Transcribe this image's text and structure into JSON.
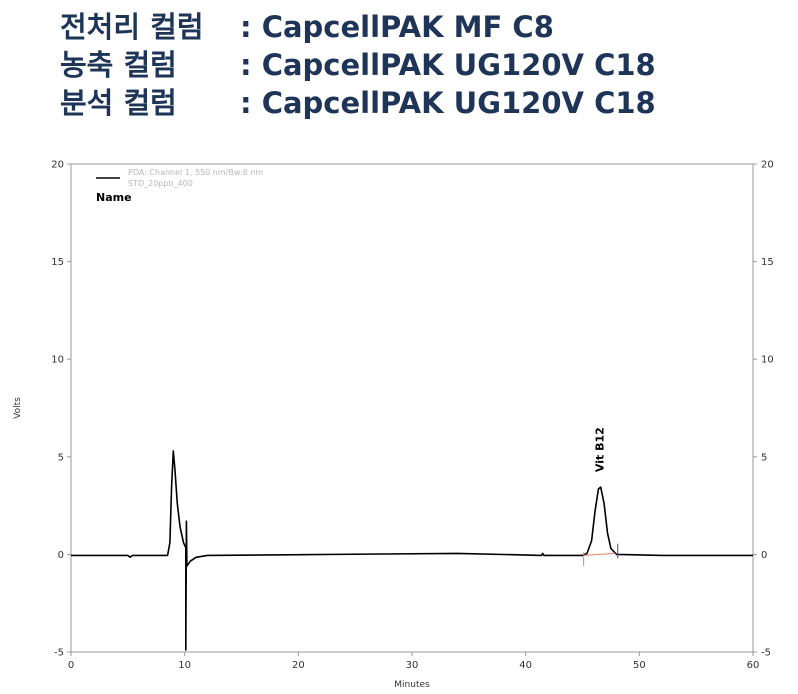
{
  "header": {
    "lines": [
      {
        "label": "전처리 컬럼",
        "value": ": CapcellPAK MF C8"
      },
      {
        "label": "농축 컬럼",
        "value": ": CapcellPAK UG120V C18"
      },
      {
        "label": "분석 컬럼",
        "value": ": CapcellPAK UG120V C18"
      }
    ]
  },
  "chart_data": {
    "type": "line",
    "xlabel": "Minutes",
    "ylabel": "Volts",
    "xlim": [
      0,
      60
    ],
    "ylim": [
      -5,
      20
    ],
    "x_ticks": [
      "0",
      "10",
      "20",
      "30",
      "40",
      "50",
      "60"
    ],
    "y_ticks": [
      "-5",
      "0",
      "5",
      "10",
      "15",
      "20"
    ],
    "right_y_ticks": [
      "-5",
      "0",
      "5",
      "10",
      "15",
      "20"
    ],
    "grid": false,
    "legend": {
      "placement": "top-left",
      "entries": [
        "PDA: Channel 1, 550 nm/Bw:8 nm",
        "STD_20ppb_400"
      ],
      "heading": "Name"
    },
    "annotations": [
      {
        "text": "Vit B12",
        "x": 46.5,
        "y": 3.5
      }
    ],
    "colors": {
      "trace": "#000000",
      "baseline": "#e8806a",
      "marker_end": "#3344cc"
    },
    "series": [
      {
        "points": [
          [
            0,
            -0.05
          ],
          [
            5.0,
            -0.05
          ],
          [
            5.2,
            -0.15
          ],
          [
            5.4,
            -0.05
          ],
          [
            8.5,
            -0.05
          ],
          [
            8.7,
            0.6
          ],
          [
            8.85,
            3.5
          ],
          [
            9.0,
            5.3
          ],
          [
            9.15,
            4.3
          ],
          [
            9.35,
            2.6
          ],
          [
            9.6,
            1.4
          ],
          [
            9.9,
            0.6
          ],
          [
            10.1,
            0.35
          ],
          [
            10.1,
            -4.9
          ],
          [
            10.15,
            1.7
          ],
          [
            10.2,
            -0.6
          ],
          [
            10.5,
            -0.35
          ],
          [
            11.0,
            -0.15
          ],
          [
            12.0,
            -0.05
          ],
          [
            34.0,
            0.05
          ],
          [
            41.4,
            -0.05
          ],
          [
            41.5,
            0.05
          ],
          [
            41.6,
            -0.05
          ],
          [
            45.0,
            -0.05
          ],
          [
            45.4,
            0.05
          ],
          [
            45.8,
            0.7
          ],
          [
            46.1,
            2.2
          ],
          [
            46.4,
            3.35
          ],
          [
            46.6,
            3.45
          ],
          [
            46.9,
            2.6
          ],
          [
            47.2,
            1.1
          ],
          [
            47.5,
            0.3
          ],
          [
            48.0,
            0.0
          ],
          [
            52.0,
            -0.05
          ],
          [
            60.0,
            -0.05
          ]
        ]
      }
    ]
  }
}
